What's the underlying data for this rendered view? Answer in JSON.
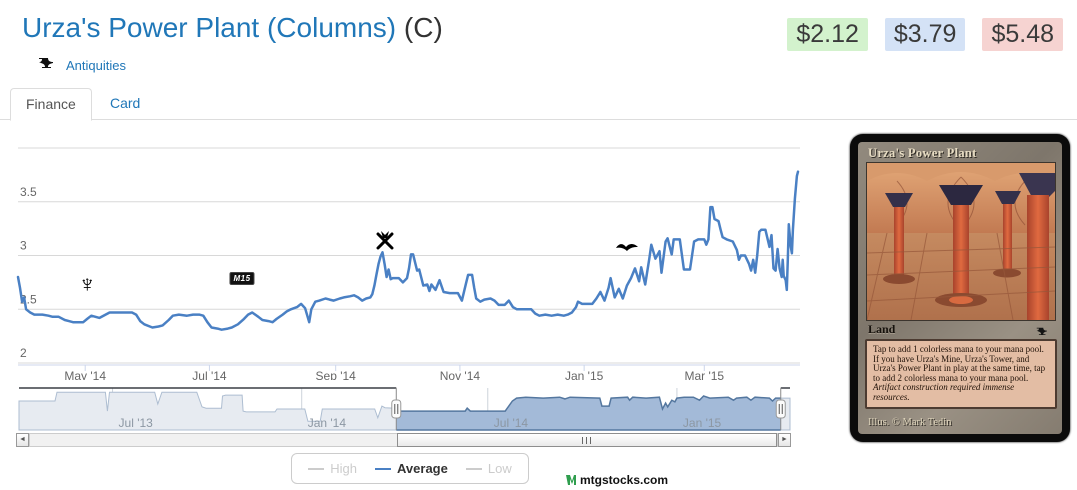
{
  "header": {
    "title": "Urza's Power Plant (Columns)",
    "rarity": "(C)",
    "set_link": "Antiquities",
    "prices": [
      {
        "label": "$2.12",
        "bg": "#d3f2cd",
        "meaning": "low"
      },
      {
        "label": "$3.79",
        "bg": "#d4e2f6",
        "meaning": "average"
      },
      {
        "label": "$5.48",
        "bg": "#f6d3d1",
        "meaning": "high"
      }
    ]
  },
  "tabs": [
    {
      "label": "Finance",
      "active": true
    },
    {
      "label": "Card",
      "active": false
    }
  ],
  "watermark": {
    "text": "mtgstocks.com",
    "logo_color": "#2f9e4e"
  },
  "legend": {
    "items": [
      {
        "label": "High",
        "color": "#cccccc",
        "text_color": "#cccccc",
        "disabled": true
      },
      {
        "label": "Average",
        "color": "#4a80c4",
        "text_color": "#333333",
        "disabled": false
      },
      {
        "label": "Low",
        "color": "#cccccc",
        "text_color": "#cccccc",
        "disabled": true
      }
    ]
  },
  "chart_data": {
    "type": "line",
    "title": "",
    "xlabel": "",
    "ylabel": "",
    "x_unit": "days since 2014-04-01",
    "xlim": [
      -3,
      381
    ],
    "ylim": [
      2,
      4.07
    ],
    "grid": true,
    "line_color": "#4a80c4",
    "grid_color": "#d8d8d8",
    "axis_line_color": "#ccd6eb",
    "label_color": "#666666",
    "yticks": [
      {
        "value": 2,
        "label": "2"
      },
      {
        "value": 2.5,
        "label": "2.5"
      },
      {
        "value": 3,
        "label": "3"
      },
      {
        "value": 3.5,
        "label": "3.5"
      },
      {
        "value": 4,
        "label": ""
      }
    ],
    "xticks": [
      {
        "value": 30,
        "label": "May '14"
      },
      {
        "value": 91,
        "label": "Jul '14"
      },
      {
        "value": 153,
        "label": "Sep '14"
      },
      {
        "value": 214,
        "label": "Nov '14"
      },
      {
        "value": 275,
        "label": "Jan '15"
      },
      {
        "value": 334,
        "label": "Mar '15"
      }
    ],
    "series": [
      {
        "name": "Average",
        "color": "#4a80c4",
        "points": [
          [
            -3,
            2.8
          ],
          [
            -2,
            2.7
          ],
          [
            -1,
            2.57
          ],
          [
            0,
            2.61
          ],
          [
            1,
            2.5
          ],
          [
            3,
            2.47
          ],
          [
            5,
            2.45
          ],
          [
            9,
            2.45
          ],
          [
            12,
            2.44
          ],
          [
            14,
            2.43
          ],
          [
            17,
            2.43
          ],
          [
            20,
            2.4
          ],
          [
            22,
            2.39
          ],
          [
            24,
            2.38
          ],
          [
            29,
            2.38
          ],
          [
            31,
            2.41
          ],
          [
            33,
            2.44
          ],
          [
            35,
            2.43
          ],
          [
            37,
            2.42
          ],
          [
            40,
            2.45
          ],
          [
            42,
            2.47
          ],
          [
            48,
            2.47
          ],
          [
            53,
            2.47
          ],
          [
            55,
            2.45
          ],
          [
            57,
            2.39
          ],
          [
            59,
            2.36
          ],
          [
            63,
            2.33
          ],
          [
            66,
            2.34
          ],
          [
            68,
            2.35
          ],
          [
            71,
            2.4
          ],
          [
            73,
            2.44
          ],
          [
            76,
            2.45
          ],
          [
            80,
            2.44
          ],
          [
            83,
            2.45
          ],
          [
            86,
            2.45
          ],
          [
            88,
            2.44
          ],
          [
            90,
            2.38
          ],
          [
            92,
            2.33
          ],
          [
            95,
            2.32
          ],
          [
            97,
            2.31
          ],
          [
            100,
            2.32
          ],
          [
            102,
            2.33
          ],
          [
            105,
            2.36
          ],
          [
            108,
            2.41
          ],
          [
            110,
            2.45
          ],
          [
            112,
            2.47
          ],
          [
            115,
            2.43
          ],
          [
            117,
            2.4
          ],
          [
            120,
            2.39
          ],
          [
            122,
            2.38
          ],
          [
            124,
            2.41
          ],
          [
            127,
            2.45
          ],
          [
            129,
            2.48
          ],
          [
            131,
            2.5
          ],
          [
            134,
            2.52
          ],
          [
            136,
            2.55
          ],
          [
            138,
            2.51
          ],
          [
            140,
            2.38
          ],
          [
            141,
            2.5
          ],
          [
            143,
            2.57
          ],
          [
            145,
            2.58
          ],
          [
            148,
            2.6
          ],
          [
            150,
            2.59
          ],
          [
            152,
            2.58
          ],
          [
            155,
            2.6
          ],
          [
            157,
            2.61
          ],
          [
            160,
            2.62
          ],
          [
            162,
            2.63
          ],
          [
            164,
            2.61
          ],
          [
            166,
            2.58
          ],
          [
            168,
            2.6
          ],
          [
            170,
            2.61
          ],
          [
            171,
            2.64
          ],
          [
            172,
            2.72
          ],
          [
            173,
            2.82
          ],
          [
            174,
            2.92
          ],
          [
            175,
            2.99
          ],
          [
            176,
            3.03
          ],
          [
            177,
            2.92
          ],
          [
            178,
            2.8
          ],
          [
            179,
            2.87
          ],
          [
            180,
            2.78
          ],
          [
            181,
            2.79
          ],
          [
            184,
            2.79
          ],
          [
            186,
            2.75
          ],
          [
            188,
            2.79
          ],
          [
            189,
            2.88
          ],
          [
            190,
            3.01
          ],
          [
            191,
            3.01
          ],
          [
            193,
            2.86
          ],
          [
            194,
            2.87
          ],
          [
            196,
            2.72
          ],
          [
            198,
            2.73
          ],
          [
            199,
            2.67
          ],
          [
            200,
            2.73
          ],
          [
            202,
            2.68
          ],
          [
            204,
            2.77
          ],
          [
            206,
            2.66
          ],
          [
            209,
            2.65
          ],
          [
            213,
            2.65
          ],
          [
            215,
            2.58
          ],
          [
            217,
            2.74
          ],
          [
            218,
            2.82
          ],
          [
            220,
            2.82
          ],
          [
            221,
            2.7
          ],
          [
            222,
            2.6
          ],
          [
            224,
            2.57
          ],
          [
            226,
            2.59
          ],
          [
            229,
            2.6
          ],
          [
            231,
            2.58
          ],
          [
            233,
            2.54
          ],
          [
            236,
            2.54
          ],
          [
            238,
            2.58
          ],
          [
            240,
            2.52
          ],
          [
            242,
            2.5
          ],
          [
            246,
            2.5
          ],
          [
            249,
            2.5
          ],
          [
            251,
            2.46
          ],
          [
            253,
            2.44
          ],
          [
            256,
            2.45
          ],
          [
            259,
            2.44
          ],
          [
            262,
            2.45
          ],
          [
            265,
            2.44
          ],
          [
            267,
            2.45
          ],
          [
            269,
            2.47
          ],
          [
            271,
            2.52
          ],
          [
            272,
            2.57
          ],
          [
            274,
            2.55
          ],
          [
            277,
            2.55
          ],
          [
            279,
            2.55
          ],
          [
            281,
            2.6
          ],
          [
            283,
            2.66
          ],
          [
            285,
            2.58
          ],
          [
            287,
            2.7
          ],
          [
            288,
            2.79
          ],
          [
            290,
            2.61
          ],
          [
            292,
            2.69
          ],
          [
            294,
            2.6
          ],
          [
            296,
            2.72
          ],
          [
            298,
            2.79
          ],
          [
            300,
            2.88
          ],
          [
            302,
            2.76
          ],
          [
            303,
            2.89
          ],
          [
            305,
            2.73
          ],
          [
            307,
            2.97
          ],
          [
            308,
            3.1
          ],
          [
            310,
            2.97
          ],
          [
            312,
            3.04
          ],
          [
            313,
            2.84
          ],
          [
            315,
            3.13
          ],
          [
            316,
            3.16
          ],
          [
            318,
            3.01
          ],
          [
            319,
            3.15
          ],
          [
            322,
            3.15
          ],
          [
            324,
            2.87
          ],
          [
            327,
            2.87
          ],
          [
            329,
            3.13
          ],
          [
            331,
            3.15
          ],
          [
            334,
            3.15
          ],
          [
            335,
            3.1
          ],
          [
            336,
            3.15
          ],
          [
            337,
            3.45
          ],
          [
            338,
            3.45
          ],
          [
            339,
            3.34
          ],
          [
            341,
            3.32
          ],
          [
            342,
            3.24
          ],
          [
            343,
            3.17
          ],
          [
            345,
            3.15
          ],
          [
            348,
            3.13
          ],
          [
            350,
            3.05
          ],
          [
            351,
            2.96
          ],
          [
            352,
            3.0
          ],
          [
            354,
            3.0
          ],
          [
            356,
            2.92
          ],
          [
            357,
            2.86
          ],
          [
            358,
            2.96
          ],
          [
            359,
            2.84
          ],
          [
            360,
            3.0
          ],
          [
            361,
            3.22
          ],
          [
            362,
            3.24
          ],
          [
            364,
            3.24
          ],
          [
            366,
            3.08
          ],
          [
            367,
            3.19
          ],
          [
            368,
            2.88
          ],
          [
            369,
            2.86
          ],
          [
            370,
            3.06
          ],
          [
            371,
            2.88
          ],
          [
            372,
            2.8
          ],
          [
            372.5,
            2.96
          ],
          [
            373,
            2.81
          ],
          [
            374,
            2.77
          ],
          [
            374.5,
            2.68
          ],
          [
            375,
            2.96
          ],
          [
            375.5,
            3.29
          ],
          [
            376.5,
            3.08
          ],
          [
            377,
            3.02
          ],
          [
            377.5,
            3.24
          ],
          [
            378.5,
            3.53
          ],
          [
            379.5,
            3.74
          ],
          [
            380,
            3.78
          ]
        ]
      }
    ],
    "event_markers": [
      {
        "key": "jou",
        "set": "Journey into Nyx",
        "day": 31,
        "price": 2.73,
        "label": ""
      },
      {
        "key": "m15",
        "set": "Magic 2015",
        "day": 107,
        "price": 2.8,
        "label": "M15"
      },
      {
        "key": "ktk",
        "set": "Khans of Tarkir",
        "day": 177,
        "price": 3.14,
        "label": ""
      },
      {
        "key": "frf",
        "set": "Fate Reforged",
        "day": 296,
        "price": 3.08,
        "label": ""
      }
    ],
    "navigator": {
      "x_unit": "days since 2013-04-01",
      "xlim": [
        0,
        750
      ],
      "selected_range": [
        367,
        741
      ],
      "mask_outside": true,
      "colors": {
        "unselected_fill": "#e7ebf1",
        "unselected_line": "#adbdd1",
        "selected_fill": "#a3bad8",
        "selected_line": "#54779f",
        "outline": "#3a3f45",
        "gridline": "#cdd3da",
        "label": "#8c97a3"
      },
      "xticks": [
        {
          "value": 91,
          "label": "Jul '13"
        },
        {
          "value": 275,
          "label": "Jan '14"
        },
        {
          "value": 456,
          "label": "Jul '14"
        },
        {
          "value": 640,
          "label": "Jan '15"
        }
      ],
      "points": [
        [
          0,
          0.69
        ],
        [
          35,
          0.69
        ],
        [
          37,
          0.9
        ],
        [
          84,
          0.9
        ],
        [
          86,
          0.45
        ],
        [
          88,
          0.9
        ],
        [
          132,
          0.9
        ],
        [
          135,
          0.62
        ],
        [
          139,
          0.9
        ],
        [
          173,
          0.9
        ],
        [
          178,
          0.55
        ],
        [
          182,
          0.52
        ],
        [
          197,
          0.52
        ],
        [
          198,
          0.81
        ],
        [
          201,
          0.83
        ],
        [
          217,
          0.83
        ],
        [
          218,
          0.45
        ],
        [
          221,
          0.43
        ],
        [
          249,
          0.43
        ],
        [
          251,
          0.5
        ],
        [
          278,
          0.5
        ],
        [
          281,
          0.21
        ],
        [
          293,
          0.21
        ],
        [
          295,
          0.5
        ],
        [
          346,
          0.5
        ],
        [
          349,
          0.29
        ],
        [
          353,
          0.57
        ],
        [
          356,
          0.53
        ],
        [
          366,
          0.52
        ],
        [
          371,
          0.45
        ],
        [
          434,
          0.45
        ],
        [
          436,
          0.52
        ],
        [
          439,
          0.45
        ],
        [
          473,
          0.45
        ],
        [
          480,
          0.69
        ],
        [
          484,
          0.76
        ],
        [
          493,
          0.78
        ],
        [
          510,
          0.76
        ],
        [
          526,
          0.78
        ],
        [
          531,
          0.74
        ],
        [
          536,
          0.78
        ],
        [
          565,
          0.76
        ],
        [
          567,
          0.57
        ],
        [
          574,
          0.57
        ],
        [
          576,
          0.76
        ],
        [
          592,
          0.78
        ],
        [
          594,
          0.71
        ],
        [
          597,
          0.78
        ],
        [
          610,
          0.76
        ],
        [
          623,
          0.78
        ],
        [
          626,
          0.5
        ],
        [
          629,
          0.64
        ],
        [
          631,
          0.55
        ],
        [
          635,
          0.71
        ],
        [
          638,
          0.67
        ],
        [
          640,
          0.76
        ],
        [
          647,
          0.78
        ],
        [
          656,
          0.78
        ],
        [
          662,
          0.71
        ],
        [
          666,
          0.81
        ],
        [
          672,
          0.76
        ],
        [
          690,
          0.78
        ],
        [
          695,
          0.71
        ],
        [
          698,
          0.76
        ],
        [
          708,
          0.78
        ],
        [
          712,
          0.71
        ],
        [
          716,
          0.78
        ],
        [
          730,
          0.76
        ],
        [
          733,
          0.69
        ],
        [
          736,
          0.76
        ],
        [
          750,
          0.76
        ]
      ]
    }
  },
  "card": {
    "name": "Urza's Power Plant",
    "type_line": "Land",
    "rules_text": "Tap to add 1 colorless mana to your mana pool. If you have Urza's Mine, Urza's Tower, and Urza's Power Plant in play at the same time, tap to add 2 colorless mana to your mana pool.",
    "flavor_text": "Artifact construction required immense resources.",
    "artist_line": "Illus. © Mark Tedin"
  }
}
